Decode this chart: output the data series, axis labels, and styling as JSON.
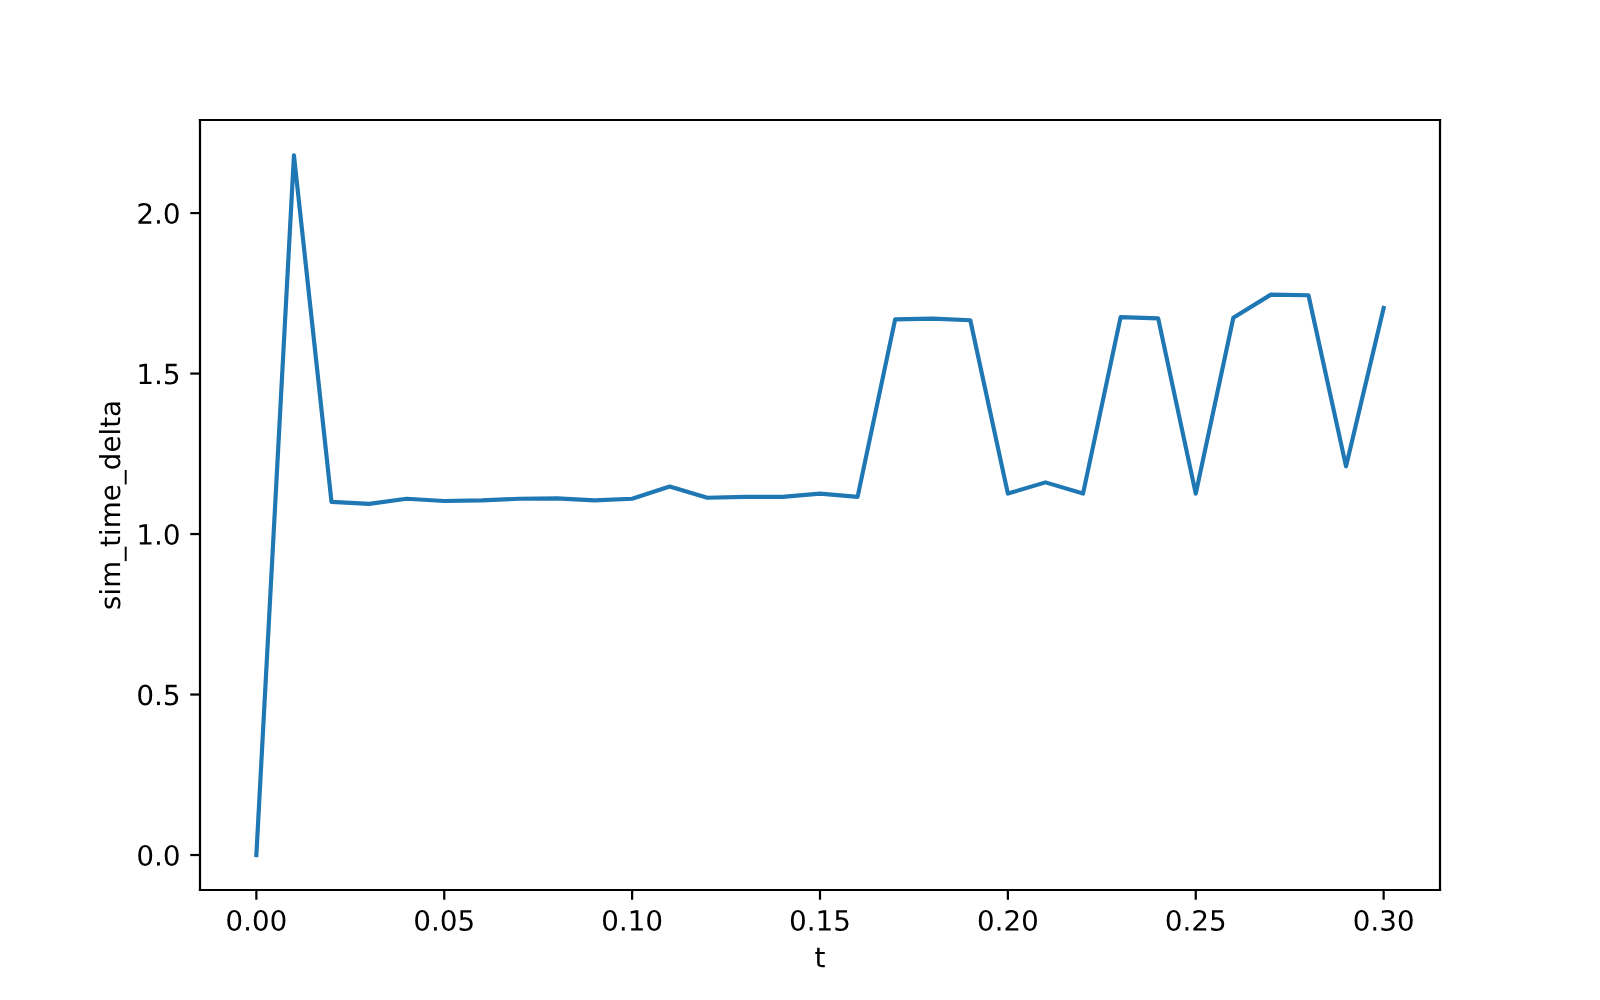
{
  "chart_data": {
    "type": "line",
    "xlabel": "t",
    "ylabel": "sim_time_delta",
    "x": [
      0.0,
      0.01,
      0.02,
      0.03,
      0.04,
      0.05,
      0.06,
      0.07,
      0.08,
      0.09,
      0.1,
      0.11,
      0.12,
      0.13,
      0.14,
      0.15,
      0.16,
      0.17,
      0.18,
      0.19,
      0.2,
      0.21,
      0.22,
      0.23,
      0.24,
      0.25,
      0.26,
      0.27,
      0.28,
      0.29,
      0.3
    ],
    "series": [
      {
        "color": "#1f77b4",
        "values": [
          0.0,
          2.18,
          1.1,
          1.094,
          1.11,
          1.103,
          1.105,
          1.11,
          1.111,
          1.105,
          1.11,
          1.148,
          1.113,
          1.116,
          1.116,
          1.126,
          1.116,
          1.669,
          1.671,
          1.666,
          1.126,
          1.161,
          1.126,
          1.676,
          1.672,
          1.126,
          1.674,
          1.746,
          1.744,
          1.211,
          1.704
        ]
      }
    ],
    "xlim": [
      -0.015,
      0.315
    ],
    "ylim": [
      -0.109,
      2.29
    ],
    "xticks": [
      {
        "value": 0.0,
        "label": "0.00"
      },
      {
        "value": 0.05,
        "label": "0.05"
      },
      {
        "value": 0.1,
        "label": "0.10"
      },
      {
        "value": 0.15,
        "label": "0.15"
      },
      {
        "value": 0.2,
        "label": "0.20"
      },
      {
        "value": 0.25,
        "label": "0.25"
      },
      {
        "value": 0.3,
        "label": "0.30"
      }
    ],
    "yticks": [
      {
        "value": 0.0,
        "label": "0.0"
      },
      {
        "value": 0.5,
        "label": "0.5"
      },
      {
        "value": 1.0,
        "label": "1.0"
      },
      {
        "value": 1.5,
        "label": "1.5"
      },
      {
        "value": 2.0,
        "label": "2.0"
      }
    ],
    "marker": "none",
    "line_style": "solid"
  }
}
